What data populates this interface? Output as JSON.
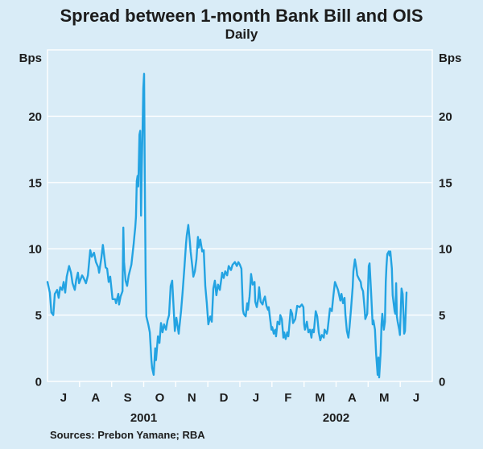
{
  "header": {
    "title": "Spread between 1-month Bank Bill and OIS",
    "subtitle": "Daily"
  },
  "footer": {
    "sources": "Sources: Prebon Yamane; RBA"
  },
  "colors": {
    "background": "#d9ecf7",
    "line": "#23a3e2",
    "grid": "#ffffff",
    "text": "#1c1c1c"
  },
  "chart_data": {
    "type": "line",
    "title": "Spread between 1-month Bank Bill and OIS",
    "subtitle": "Daily",
    "y_unit": "Bps",
    "ylabel": "Bps",
    "ylim": [
      0,
      25
    ],
    "y_ticks": [
      0,
      5,
      10,
      15,
      20
    ],
    "grid": "horizontal white gridlines, white plot frame, tick labels on both sides",
    "legend_position": "none",
    "x_axis": {
      "start": "2001-07",
      "end": "2002-07",
      "month_labels": [
        "J",
        "A",
        "S",
        "O",
        "N",
        "D",
        "J",
        "F",
        "M",
        "A",
        "M",
        "J"
      ],
      "year_labels": [
        {
          "label": "2001",
          "position": 0.25
        },
        {
          "label": "2002",
          "position": 0.75
        }
      ],
      "note": "x of each point is a fraction of the axis from Jul 2001 (0) to Jul 2002 (1)"
    },
    "series": [
      {
        "name": "1-month bank bill / OIS spread (bps, daily)",
        "points": [
          [
            0.0,
            7.5
          ],
          [
            0.006,
            6.7
          ],
          [
            0.01,
            5.2
          ],
          [
            0.015,
            5.0
          ],
          [
            0.019,
            6.6
          ],
          [
            0.025,
            6.9
          ],
          [
            0.029,
            6.3
          ],
          [
            0.033,
            7.1
          ],
          [
            0.038,
            6.9
          ],
          [
            0.042,
            7.5
          ],
          [
            0.046,
            6.7
          ],
          [
            0.05,
            7.9
          ],
          [
            0.056,
            8.7
          ],
          [
            0.061,
            8.2
          ],
          [
            0.065,
            7.4
          ],
          [
            0.071,
            6.9
          ],
          [
            0.075,
            7.7
          ],
          [
            0.079,
            8.2
          ],
          [
            0.082,
            7.4
          ],
          [
            0.09,
            8.0
          ],
          [
            0.094,
            7.8
          ],
          [
            0.1,
            7.4
          ],
          [
            0.105,
            8.0
          ],
          [
            0.111,
            9.9
          ],
          [
            0.115,
            9.4
          ],
          [
            0.121,
            9.7
          ],
          [
            0.126,
            9.0
          ],
          [
            0.132,
            8.6
          ],
          [
            0.134,
            8.2
          ],
          [
            0.14,
            9.3
          ],
          [
            0.144,
            10.3
          ],
          [
            0.151,
            8.6
          ],
          [
            0.155,
            8.5
          ],
          [
            0.159,
            7.5
          ],
          [
            0.163,
            7.9
          ],
          [
            0.169,
            6.2
          ],
          [
            0.176,
            6.2
          ],
          [
            0.178,
            5.9
          ],
          [
            0.184,
            6.6
          ],
          [
            0.186,
            5.8
          ],
          [
            0.19,
            6.4
          ],
          [
            0.195,
            6.8
          ],
          [
            0.197,
            11.6
          ],
          [
            0.199,
            9.0
          ],
          [
            0.203,
            7.6
          ],
          [
            0.207,
            7.2
          ],
          [
            0.211,
            8.0
          ],
          [
            0.218,
            8.8
          ],
          [
            0.224,
            10.4
          ],
          [
            0.226,
            11.0
          ],
          [
            0.228,
            11.6
          ],
          [
            0.23,
            12.4
          ],
          [
            0.232,
            15.1
          ],
          [
            0.234,
            15.5
          ],
          [
            0.236,
            14.7
          ],
          [
            0.239,
            18.6
          ],
          [
            0.241,
            18.9
          ],
          [
            0.243,
            12.5
          ],
          [
            0.245,
            16.0
          ],
          [
            0.247,
            19.0
          ],
          [
            0.249,
            22.1
          ],
          [
            0.251,
            23.2
          ],
          [
            0.253,
            15.1
          ],
          [
            0.255,
            8.0
          ],
          [
            0.257,
            4.9
          ],
          [
            0.262,
            4.3
          ],
          [
            0.266,
            3.7
          ],
          [
            0.27,
            1.6
          ],
          [
            0.272,
            1.0
          ],
          [
            0.276,
            0.5
          ],
          [
            0.28,
            2.5
          ],
          [
            0.282,
            1.6
          ],
          [
            0.287,
            3.4
          ],
          [
            0.291,
            2.9
          ],
          [
            0.295,
            4.4
          ],
          [
            0.299,
            3.7
          ],
          [
            0.303,
            4.3
          ],
          [
            0.308,
            3.9
          ],
          [
            0.312,
            4.6
          ],
          [
            0.316,
            5.0
          ],
          [
            0.32,
            7.2
          ],
          [
            0.324,
            7.6
          ],
          [
            0.331,
            3.8
          ],
          [
            0.335,
            4.8
          ],
          [
            0.341,
            3.6
          ],
          [
            0.347,
            5.3
          ],
          [
            0.351,
            6.7
          ],
          [
            0.356,
            8.7
          ],
          [
            0.36,
            10.4
          ],
          [
            0.362,
            11.0
          ],
          [
            0.366,
            11.8
          ],
          [
            0.37,
            10.5
          ],
          [
            0.372,
            9.8
          ],
          [
            0.377,
            8.5
          ],
          [
            0.379,
            7.9
          ],
          [
            0.383,
            8.3
          ],
          [
            0.387,
            9.2
          ],
          [
            0.391,
            10.9
          ],
          [
            0.393,
            10.1
          ],
          [
            0.397,
            10.7
          ],
          [
            0.402,
            9.8
          ],
          [
            0.406,
            9.9
          ],
          [
            0.41,
            7.2
          ],
          [
            0.414,
            5.9
          ],
          [
            0.418,
            4.3
          ],
          [
            0.423,
            4.9
          ],
          [
            0.427,
            4.5
          ],
          [
            0.431,
            7.0
          ],
          [
            0.435,
            7.6
          ],
          [
            0.439,
            6.5
          ],
          [
            0.443,
            7.3
          ],
          [
            0.448,
            6.9
          ],
          [
            0.454,
            8.2
          ],
          [
            0.458,
            7.8
          ],
          [
            0.462,
            8.3
          ],
          [
            0.467,
            8.0
          ],
          [
            0.471,
            8.7
          ],
          [
            0.477,
            8.4
          ],
          [
            0.481,
            8.8
          ],
          [
            0.487,
            9.0
          ],
          [
            0.492,
            8.7
          ],
          [
            0.496,
            9.0
          ],
          [
            0.5,
            8.8
          ],
          [
            0.504,
            8.5
          ],
          [
            0.508,
            5.4
          ],
          [
            0.51,
            5.1
          ],
          [
            0.515,
            4.9
          ],
          [
            0.519,
            5.9
          ],
          [
            0.521,
            5.4
          ],
          [
            0.525,
            6.4
          ],
          [
            0.529,
            8.1
          ],
          [
            0.533,
            7.3
          ],
          [
            0.538,
            7.5
          ],
          [
            0.54,
            6.0
          ],
          [
            0.544,
            5.6
          ],
          [
            0.548,
            6.3
          ],
          [
            0.55,
            7.1
          ],
          [
            0.554,
            6.0
          ],
          [
            0.559,
            5.8
          ],
          [
            0.561,
            6.1
          ],
          [
            0.565,
            6.4
          ],
          [
            0.569,
            5.7
          ],
          [
            0.573,
            5.4
          ],
          [
            0.575,
            5.6
          ],
          [
            0.582,
            3.9
          ],
          [
            0.584,
            4.1
          ],
          [
            0.588,
            3.6
          ],
          [
            0.592,
            3.9
          ],
          [
            0.594,
            3.4
          ],
          [
            0.598,
            4.5
          ],
          [
            0.603,
            4.3
          ],
          [
            0.605,
            5.0
          ],
          [
            0.609,
            4.7
          ],
          [
            0.613,
            3.3
          ],
          [
            0.615,
            3.7
          ],
          [
            0.619,
            3.2
          ],
          [
            0.623,
            3.7
          ],
          [
            0.626,
            3.4
          ],
          [
            0.632,
            5.4
          ],
          [
            0.636,
            5.1
          ],
          [
            0.638,
            4.4
          ],
          [
            0.644,
            4.7
          ],
          [
            0.649,
            5.7
          ],
          [
            0.655,
            5.6
          ],
          [
            0.661,
            5.8
          ],
          [
            0.665,
            5.6
          ],
          [
            0.667,
            4.3
          ],
          [
            0.669,
            3.9
          ],
          [
            0.674,
            4.5
          ],
          [
            0.678,
            3.7
          ],
          [
            0.682,
            3.9
          ],
          [
            0.686,
            3.3
          ],
          [
            0.688,
            3.9
          ],
          [
            0.692,
            3.7
          ],
          [
            0.697,
            5.3
          ],
          [
            0.701,
            4.9
          ],
          [
            0.705,
            3.7
          ],
          [
            0.709,
            3.1
          ],
          [
            0.713,
            3.5
          ],
          [
            0.718,
            3.3
          ],
          [
            0.72,
            3.9
          ],
          [
            0.726,
            3.6
          ],
          [
            0.728,
            3.9
          ],
          [
            0.734,
            5.5
          ],
          [
            0.739,
            5.3
          ],
          [
            0.743,
            6.5
          ],
          [
            0.747,
            7.5
          ],
          [
            0.751,
            7.2
          ],
          [
            0.755,
            6.9
          ],
          [
            0.761,
            6.1
          ],
          [
            0.764,
            6.6
          ],
          [
            0.768,
            5.9
          ],
          [
            0.772,
            6.3
          ],
          [
            0.774,
            5.1
          ],
          [
            0.778,
            3.8
          ],
          [
            0.782,
            3.3
          ],
          [
            0.785,
            4.1
          ],
          [
            0.789,
            5.5
          ],
          [
            0.793,
            7.1
          ],
          [
            0.795,
            8.3
          ],
          [
            0.799,
            9.2
          ],
          [
            0.803,
            8.5
          ],
          [
            0.805,
            8.0
          ],
          [
            0.81,
            7.7
          ],
          [
            0.814,
            7.5
          ],
          [
            0.816,
            7.1
          ],
          [
            0.82,
            6.8
          ],
          [
            0.824,
            5.5
          ],
          [
            0.826,
            4.7
          ],
          [
            0.831,
            5.1
          ],
          [
            0.835,
            8.7
          ],
          [
            0.837,
            8.9
          ],
          [
            0.841,
            6.7
          ],
          [
            0.845,
            4.3
          ],
          [
            0.847,
            4.6
          ],
          [
            0.851,
            3.9
          ],
          [
            0.854,
            2.1
          ],
          [
            0.858,
            0.5
          ],
          [
            0.86,
            1.8
          ],
          [
            0.862,
            0.3
          ],
          [
            0.866,
            2.2
          ],
          [
            0.868,
            4.3
          ],
          [
            0.87,
            5.1
          ],
          [
            0.874,
            3.9
          ],
          [
            0.877,
            4.5
          ],
          [
            0.879,
            7.5
          ],
          [
            0.881,
            8.7
          ],
          [
            0.883,
            9.6
          ],
          [
            0.887,
            9.8
          ],
          [
            0.889,
            9.5
          ],
          [
            0.891,
            9.8
          ],
          [
            0.895,
            8.5
          ],
          [
            0.897,
            6.5
          ],
          [
            0.902,
            5.3
          ],
          [
            0.904,
            5.1
          ],
          [
            0.906,
            7.4
          ],
          [
            0.908,
            4.9
          ],
          [
            0.91,
            4.5
          ],
          [
            0.914,
            3.9
          ],
          [
            0.916,
            3.5
          ],
          [
            0.92,
            7.0
          ],
          [
            0.923,
            6.6
          ],
          [
            0.927,
            3.6
          ],
          [
            0.929,
            3.8
          ],
          [
            0.933,
            6.7
          ]
        ]
      }
    ]
  }
}
